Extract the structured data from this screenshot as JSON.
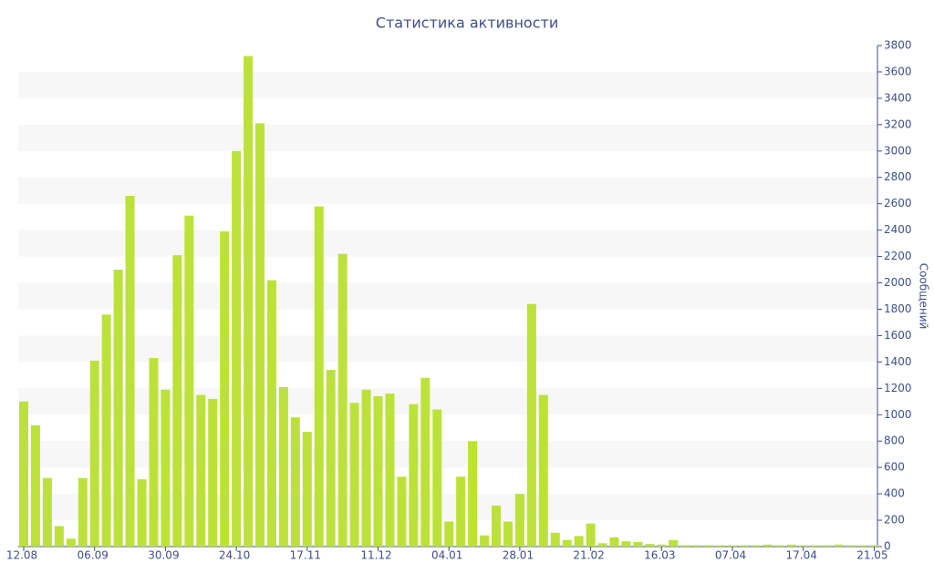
{
  "chart_data": {
    "type": "bar",
    "title": "Статистика активности",
    "y_label": "Сообщений",
    "categories": [
      "12.08",
      null,
      null,
      null,
      null,
      null,
      "06.09",
      null,
      null,
      null,
      null,
      null,
      "30.09",
      null,
      null,
      null,
      null,
      null,
      "24.10",
      null,
      null,
      null,
      null,
      null,
      "17.11",
      null,
      null,
      null,
      null,
      null,
      "11.12",
      null,
      null,
      null,
      null,
      null,
      "04.01",
      null,
      null,
      null,
      null,
      null,
      "28.01",
      null,
      null,
      null,
      null,
      null,
      "21.02",
      null,
      null,
      null,
      null,
      null,
      "16.03",
      null,
      null,
      null,
      null,
      null,
      "07.04",
      null,
      null,
      null,
      null,
      null,
      "17.04",
      null,
      null,
      null,
      null,
      null,
      "21.05"
    ],
    "values": [
      1100,
      920,
      520,
      155,
      60,
      520,
      1410,
      1760,
      2100,
      2660,
      510,
      1430,
      1190,
      2210,
      2510,
      1150,
      1120,
      2390,
      3000,
      3720,
      3210,
      2020,
      1210,
      980,
      870,
      2580,
      1340,
      2220,
      1090,
      1190,
      1140,
      1160,
      530,
      1080,
      1280,
      1040,
      190,
      530,
      800,
      85,
      310,
      190,
      400,
      1840,
      1150,
      105,
      50,
      80,
      175,
      25,
      70,
      40,
      35,
      20,
      15,
      50,
      10,
      10,
      10,
      10,
      10,
      10,
      10,
      15,
      10,
      15,
      10,
      10,
      10,
      15,
      10,
      10,
      10
    ],
    "color": "#bce23a",
    "ylim": [
      0,
      3800
    ],
    "yticks": [
      0,
      200,
      400,
      600,
      800,
      1000,
      1200,
      1400,
      1600,
      1800,
      2000,
      2200,
      2400,
      2600,
      2800,
      3000,
      3200,
      3400,
      3600,
      3800
    ],
    "grid": true
  }
}
